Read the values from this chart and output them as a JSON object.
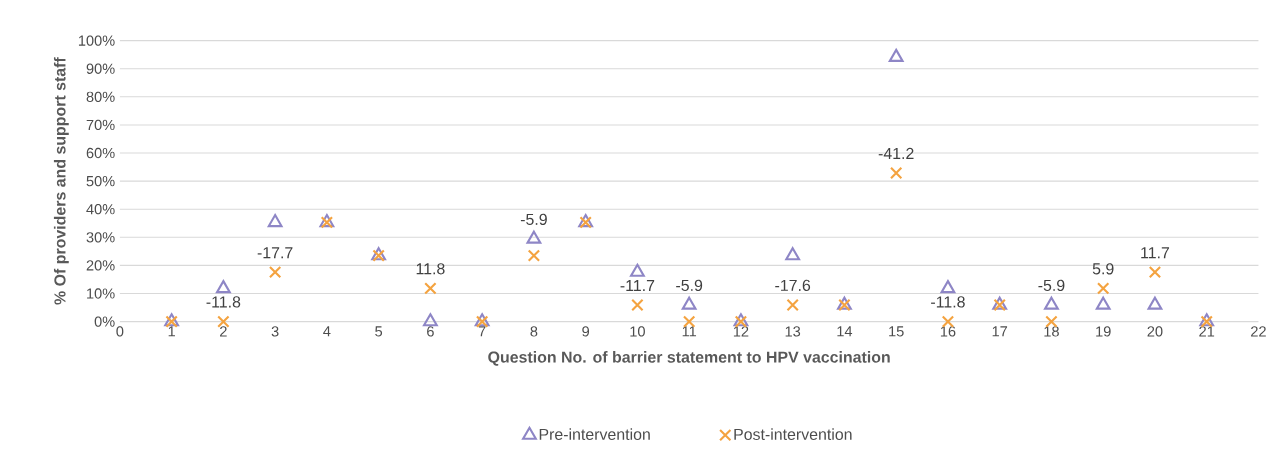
{
  "chart_data": {
    "type": "scatter",
    "xlabel": "Question No. of barrier statement to HPV vaccination",
    "ylabel": "% Of providers and support staff",
    "x": [
      1,
      2,
      3,
      4,
      5,
      6,
      7,
      8,
      9,
      10,
      11,
      12,
      13,
      14,
      15,
      16,
      17,
      18,
      19,
      20,
      21
    ],
    "series": [
      {
        "name": "Pre-intervention",
        "color": "#8e86c6",
        "marker": "triangle",
        "values": [
          0,
          11.8,
          35.3,
          35.3,
          23.5,
          0,
          0,
          29.4,
          35.3,
          17.6,
          5.9,
          0,
          23.5,
          5.9,
          94.1,
          11.8,
          5.9,
          5.9,
          5.9,
          5.9,
          0
        ]
      },
      {
        "name": "Post-intervention",
        "color": "#f4a340",
        "marker": "cross",
        "values": [
          0,
          0,
          17.6,
          35.3,
          23.5,
          11.8,
          0,
          23.5,
          35.3,
          5.9,
          0,
          0,
          5.9,
          5.9,
          52.9,
          0,
          5.9,
          0,
          11.8,
          17.6,
          0
        ]
      }
    ],
    "xlim": [
      0,
      22
    ],
    "xticks": [
      0,
      1,
      2,
      3,
      4,
      5,
      6,
      7,
      8,
      9,
      10,
      11,
      12,
      13,
      14,
      15,
      16,
      17,
      18,
      19,
      20,
      21,
      22
    ],
    "ylim": [
      0,
      100
    ],
    "yticks": [
      {
        "value": 0,
        "label": "0%"
      },
      {
        "value": 10,
        "label": "10%"
      },
      {
        "value": 20,
        "label": "20%"
      },
      {
        "value": 30,
        "label": "30%"
      },
      {
        "value": 40,
        "label": "40%"
      },
      {
        "value": 50,
        "label": "50%"
      },
      {
        "value": 60,
        "label": "60%"
      },
      {
        "value": 70,
        "label": "70%"
      },
      {
        "value": 80,
        "label": "80%"
      },
      {
        "value": 90,
        "label": "90%"
      },
      {
        "value": 100,
        "label": "100%"
      }
    ],
    "grid": "y",
    "legend": "bottom",
    "annotations": [
      {
        "text": "-11.8",
        "x": 2,
        "y": 0
      },
      {
        "text": "-17.7",
        "x": 3,
        "y": 17.6
      },
      {
        "text": "11.8",
        "x": 6,
        "y": 11.8
      },
      {
        "text": "-5.9",
        "x": 8,
        "y": 29.4
      },
      {
        "text": "-11.7",
        "x": 10,
        "y": 5.9
      },
      {
        "text": "-5.9",
        "x": 11,
        "y": 5.9
      },
      {
        "text": "-17.6",
        "x": 13,
        "y": 5.9
      },
      {
        "text": "-41.2",
        "x": 15,
        "y": 52.9
      },
      {
        "text": "-11.8",
        "x": 16,
        "y": 0
      },
      {
        "text": "-5.9",
        "x": 18,
        "y": 5.9
      },
      {
        "text": "5.9",
        "x": 19,
        "y": 11.8
      },
      {
        "text": "11.7",
        "x": 20,
        "y": 17.6
      }
    ]
  }
}
